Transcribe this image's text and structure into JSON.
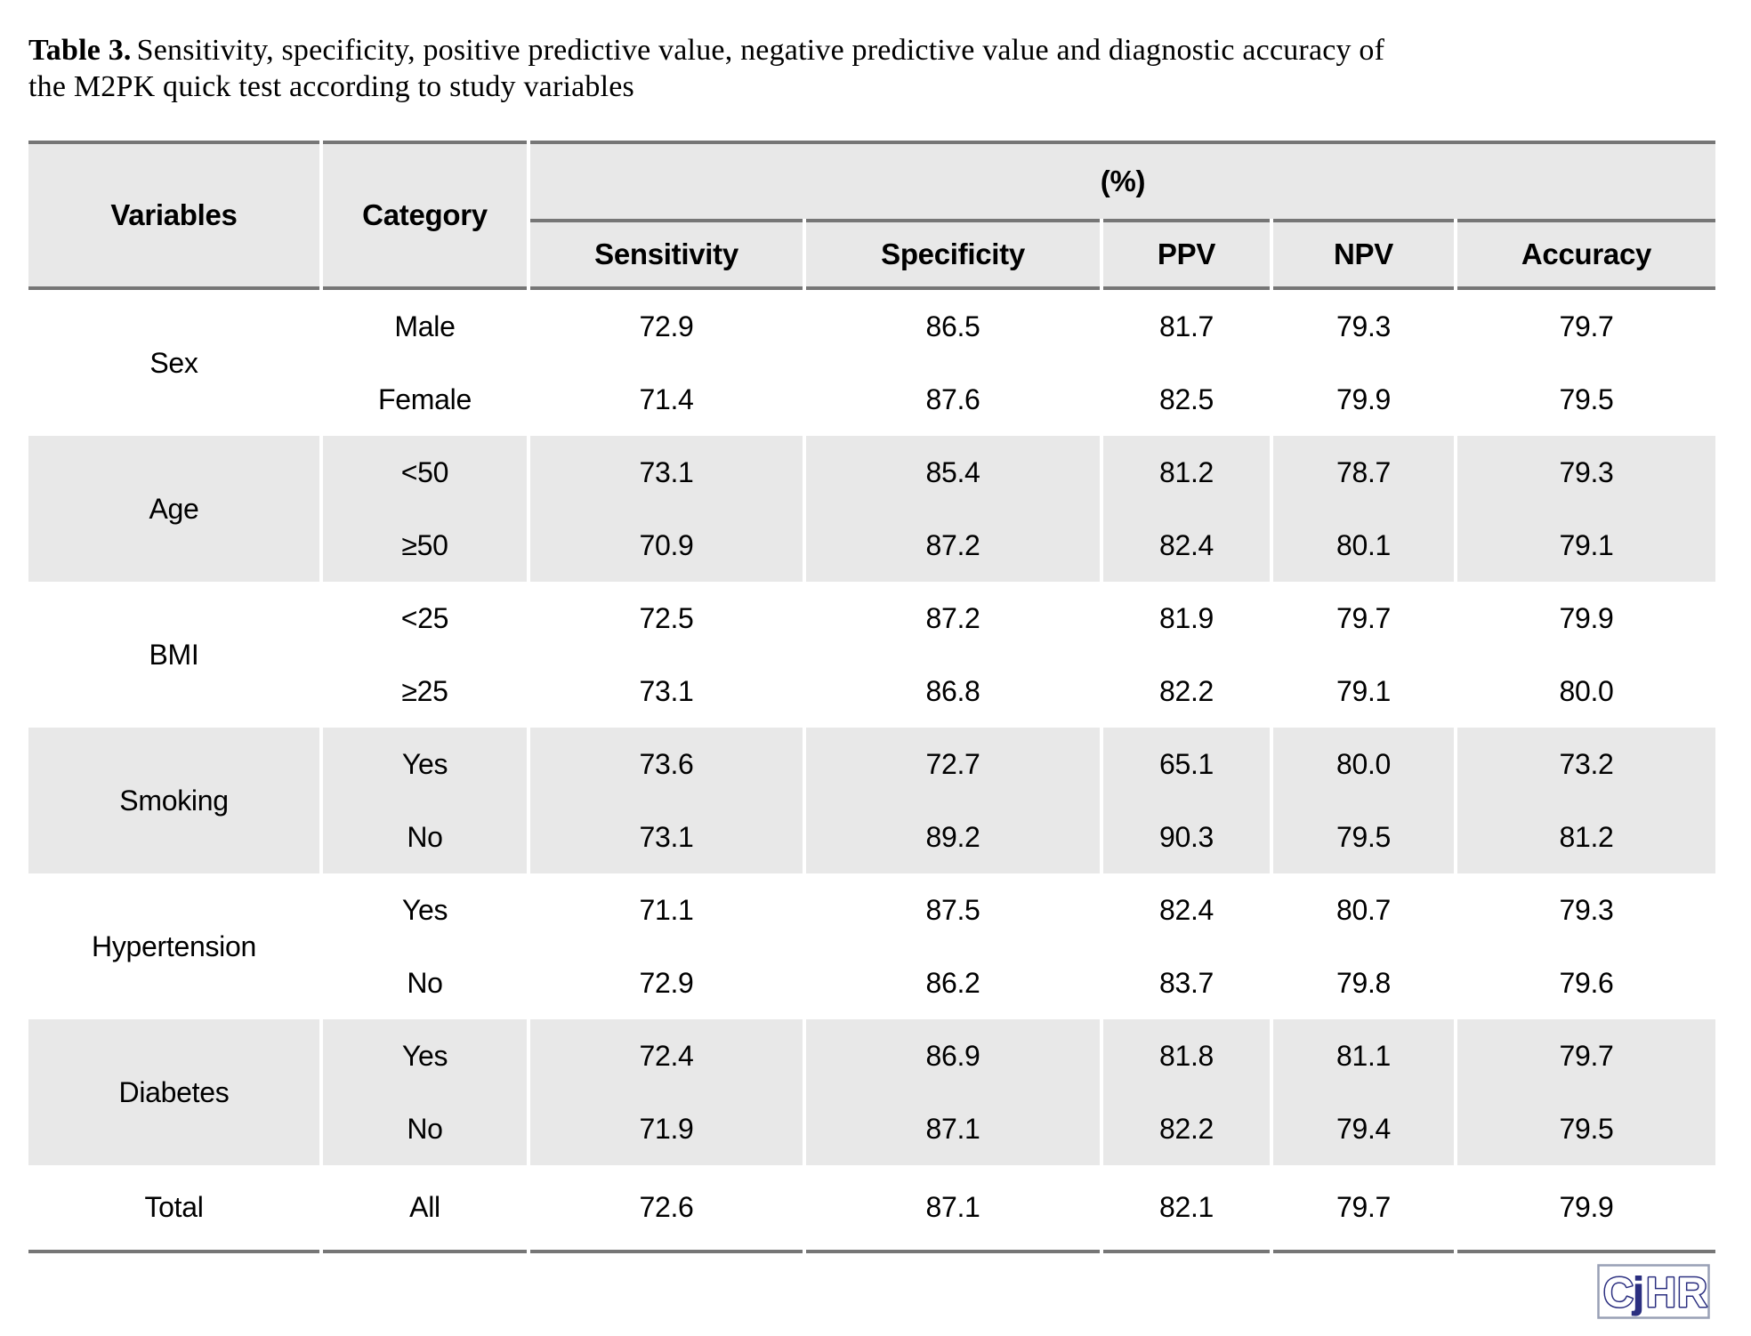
{
  "title": {
    "label": "Table 3.",
    "text": "Sensitivity, specificity, positive predictive value, negative predictive value and diagnostic accuracy of the M2PK quick test according to study variables"
  },
  "table": {
    "header": {
      "variables": "Variables",
      "category": "Category",
      "percent_group": "(%)",
      "metrics": [
        "Sensitivity",
        "Specificity",
        "PPV",
        "NPV",
        "Accuracy"
      ]
    },
    "groups": [
      {
        "variable": "Sex",
        "shaded": false,
        "rows": [
          {
            "category": "Male",
            "values": [
              "72.9",
              "86.5",
              "81.7",
              "79.3",
              "79.7"
            ]
          },
          {
            "category": "Female",
            "values": [
              "71.4",
              "87.6",
              "82.5",
              "79.9",
              "79.5"
            ]
          }
        ]
      },
      {
        "variable": "Age",
        "shaded": true,
        "rows": [
          {
            "category": "<50",
            "values": [
              "73.1",
              "85.4",
              "81.2",
              "78.7",
              "79.3"
            ]
          },
          {
            "category": "≥50",
            "values": [
              "70.9",
              "87.2",
              "82.4",
              "80.1",
              "79.1"
            ]
          }
        ]
      },
      {
        "variable": "BMI",
        "shaded": false,
        "rows": [
          {
            "category": "<25",
            "values": [
              "72.5",
              "87.2",
              "81.9",
              "79.7",
              "79.9"
            ]
          },
          {
            "category": "≥25",
            "values": [
              "73.1",
              "86.8",
              "82.2",
              "79.1",
              "80.0"
            ]
          }
        ]
      },
      {
        "variable": "Smoking",
        "shaded": true,
        "rows": [
          {
            "category": "Yes",
            "values": [
              "73.6",
              "72.7",
              "65.1",
              "80.0",
              "73.2"
            ]
          },
          {
            "category": "No",
            "values": [
              "73.1",
              "89.2",
              "90.3",
              "79.5",
              "81.2"
            ]
          }
        ]
      },
      {
        "variable": "Hypertension",
        "shaded": false,
        "rows": [
          {
            "category": "Yes",
            "values": [
              "71.1",
              "87.5",
              "82.4",
              "80.7",
              "79.3"
            ]
          },
          {
            "category": "No",
            "values": [
              "72.9",
              "86.2",
              "83.7",
              "79.8",
              "79.6"
            ]
          }
        ]
      },
      {
        "variable": "Diabetes",
        "shaded": true,
        "rows": [
          {
            "category": "Yes",
            "values": [
              "72.4",
              "86.9",
              "81.8",
              "81.1",
              "79.7"
            ]
          },
          {
            "category": "No",
            "values": [
              "71.9",
              "87.1",
              "82.2",
              "79.4",
              "79.5"
            ]
          }
        ]
      }
    ],
    "total": {
      "variable": "Total",
      "category": "All",
      "values": [
        "72.6",
        "87.1",
        "82.1",
        "79.7",
        "79.9"
      ]
    }
  },
  "logo": {
    "letters": [
      "C",
      "j",
      "H",
      "R"
    ],
    "navy": "#2b2f80",
    "border": "#99a0b5"
  },
  "colors": {
    "band": "#e8e8e8",
    "rule": "#767676",
    "text": "#000000"
  }
}
